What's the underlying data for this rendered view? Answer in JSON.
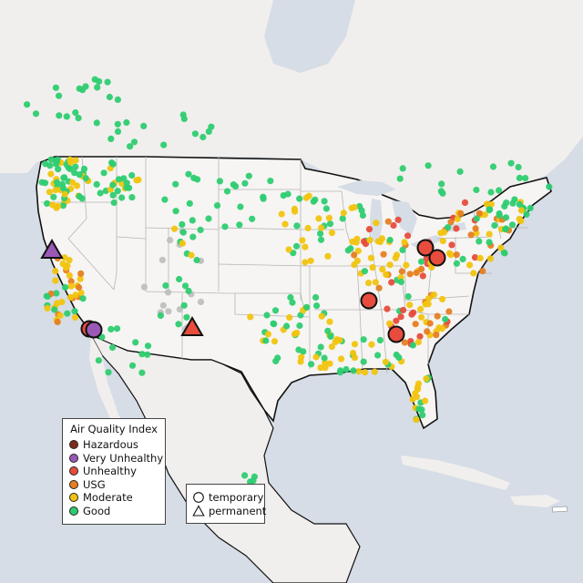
{
  "legend": {
    "title": "Air Quality Index",
    "categories": [
      {
        "label": "Hazardous",
        "color": "#7f2b1c"
      },
      {
        "label": "Very Unhealthy",
        "color": "#9b59b6"
      },
      {
        "label": "Unhealthy",
        "color": "#e74c3c"
      },
      {
        "label": "USG",
        "color": "#e67e22"
      },
      {
        "label": "Moderate",
        "color": "#f1c40f"
      },
      {
        "label": "Good",
        "color": "#2ecc71"
      }
    ],
    "no_data_color": "#bfbfbf"
  },
  "type_legend": {
    "items": [
      {
        "label": "temporary",
        "shape": "circle"
      },
      {
        "label": "permanent",
        "shape": "triangle"
      }
    ]
  },
  "colors": {
    "ocean": "#d6dde6",
    "land": "#f1efed",
    "us_land": "#f6f5f3",
    "state_border": "#b5b5b5",
    "country_border": "#111111"
  },
  "highlighted_sites": [
    {
      "kind": "circle",
      "aqi": "Unhealthy"
    },
    {
      "kind": "circle",
      "aqi": "Very Unhealthy"
    },
    {
      "kind": "circle",
      "aqi": "Unhealthy"
    },
    {
      "kind": "circle",
      "aqi": "Unhealthy"
    },
    {
      "kind": "circle",
      "aqi": "Unhealthy"
    },
    {
      "kind": "circle",
      "aqi": "Unhealthy"
    },
    {
      "kind": "triangle",
      "aqi": "Very Unhealthy"
    },
    {
      "kind": "triangle",
      "aqi": "Unhealthy"
    }
  ]
}
